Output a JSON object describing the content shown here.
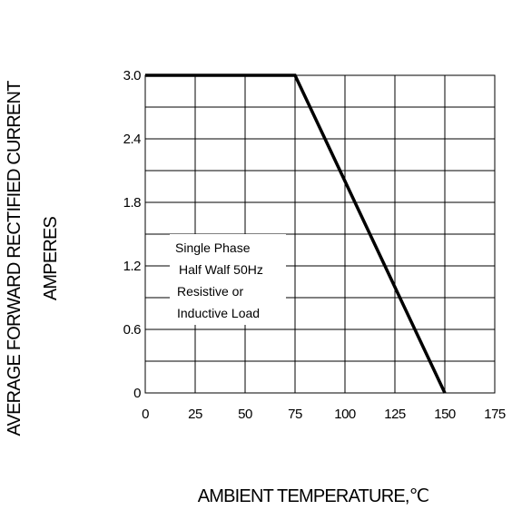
{
  "chart_data": {
    "type": "line",
    "xlabel": "AMBIENT TEMPERATURE,℃",
    "ylabel_line1": "AVERAGE FORWARD RECTIFIED CURRENT",
    "ylabel_line2": "AMPERES",
    "x_ticks": [
      "0",
      "25",
      "50",
      "75",
      "100",
      "125",
      "150",
      "175"
    ],
    "y_ticks": [
      "0",
      "0.6",
      "1.2",
      "1.8",
      "2.4",
      "3.0"
    ],
    "xlim": [
      0,
      175
    ],
    "ylim": [
      0,
      3.0
    ],
    "grid": true,
    "annotation": [
      "Single Phase",
      "Half Walf 50Hz",
      "Resistive or",
      "Inductive Load"
    ],
    "series": [
      {
        "x": [
          0,
          75,
          150
        ],
        "y": [
          3.0,
          3.0,
          0
        ]
      }
    ]
  }
}
